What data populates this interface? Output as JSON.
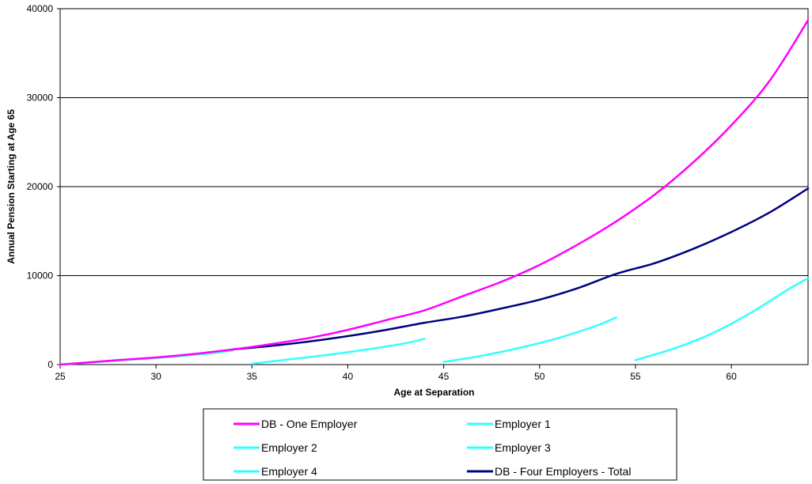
{
  "chart_data": {
    "type": "line",
    "title": "",
    "xlabel": "Age at Separation",
    "ylabel": "Annual Pension Starting at Age 65",
    "xlim": [
      25,
      64
    ],
    "ylim": [
      0,
      40000
    ],
    "x_ticks": [
      25,
      30,
      35,
      40,
      45,
      50,
      55,
      60
    ],
    "y_ticks": [
      0,
      10000,
      20000,
      30000,
      40000
    ],
    "grid": "horizontal",
    "legend_position": "bottom",
    "series": [
      {
        "name": "DB - One Employer",
        "color": "#ff00ff",
        "points": [
          [
            25,
            0
          ],
          [
            28,
            500
          ],
          [
            30,
            800
          ],
          [
            32,
            1200
          ],
          [
            34,
            1700
          ],
          [
            36,
            2300
          ],
          [
            38,
            3000
          ],
          [
            40,
            3900
          ],
          [
            42,
            5000
          ],
          [
            44,
            6100
          ],
          [
            46,
            7700
          ],
          [
            48,
            9300
          ],
          [
            50,
            11200
          ],
          [
            52,
            13500
          ],
          [
            54,
            16100
          ],
          [
            56,
            19100
          ],
          [
            58,
            22700
          ],
          [
            60,
            26900
          ],
          [
            62,
            31900
          ],
          [
            64,
            38700
          ]
        ]
      },
      {
        "name": "Employer 1",
        "color": "#33ffff",
        "points": [
          [
            25,
            0
          ],
          [
            27,
            300
          ],
          [
            29,
            600
          ],
          [
            31,
            900
          ],
          [
            33,
            1300
          ],
          [
            34,
            1600
          ]
        ]
      },
      {
        "name": "Employer 2",
        "color": "#33ffff",
        "points": [
          [
            35,
            100
          ],
          [
            37,
            600
          ],
          [
            39,
            1100
          ],
          [
            41,
            1700
          ],
          [
            43,
            2400
          ],
          [
            44,
            2900
          ]
        ]
      },
      {
        "name": "Employer 3",
        "color": "#33ffff",
        "points": [
          [
            45,
            300
          ],
          [
            47,
            1000
          ],
          [
            49,
            1900
          ],
          [
            51,
            3000
          ],
          [
            53,
            4400
          ],
          [
            54,
            5300
          ]
        ]
      },
      {
        "name": "Employer 4",
        "color": "#33ffff",
        "points": [
          [
            55,
            500
          ],
          [
            57,
            1800
          ],
          [
            59,
            3500
          ],
          [
            61,
            5800
          ],
          [
            63,
            8500
          ],
          [
            64,
            9700
          ]
        ]
      },
      {
        "name": "DB - Four Employers - Total",
        "color": "#000080",
        "points": [
          [
            34,
            1700
          ],
          [
            36,
            2100
          ],
          [
            38,
            2600
          ],
          [
            40,
            3200
          ],
          [
            42,
            3900
          ],
          [
            44,
            4700
          ],
          [
            46,
            5400
          ],
          [
            48,
            6300
          ],
          [
            50,
            7300
          ],
          [
            52,
            8600
          ],
          [
            54,
            10200
          ],
          [
            56,
            11400
          ],
          [
            58,
            13000
          ],
          [
            60,
            14900
          ],
          [
            62,
            17100
          ],
          [
            64,
            19800
          ]
        ]
      }
    ]
  }
}
